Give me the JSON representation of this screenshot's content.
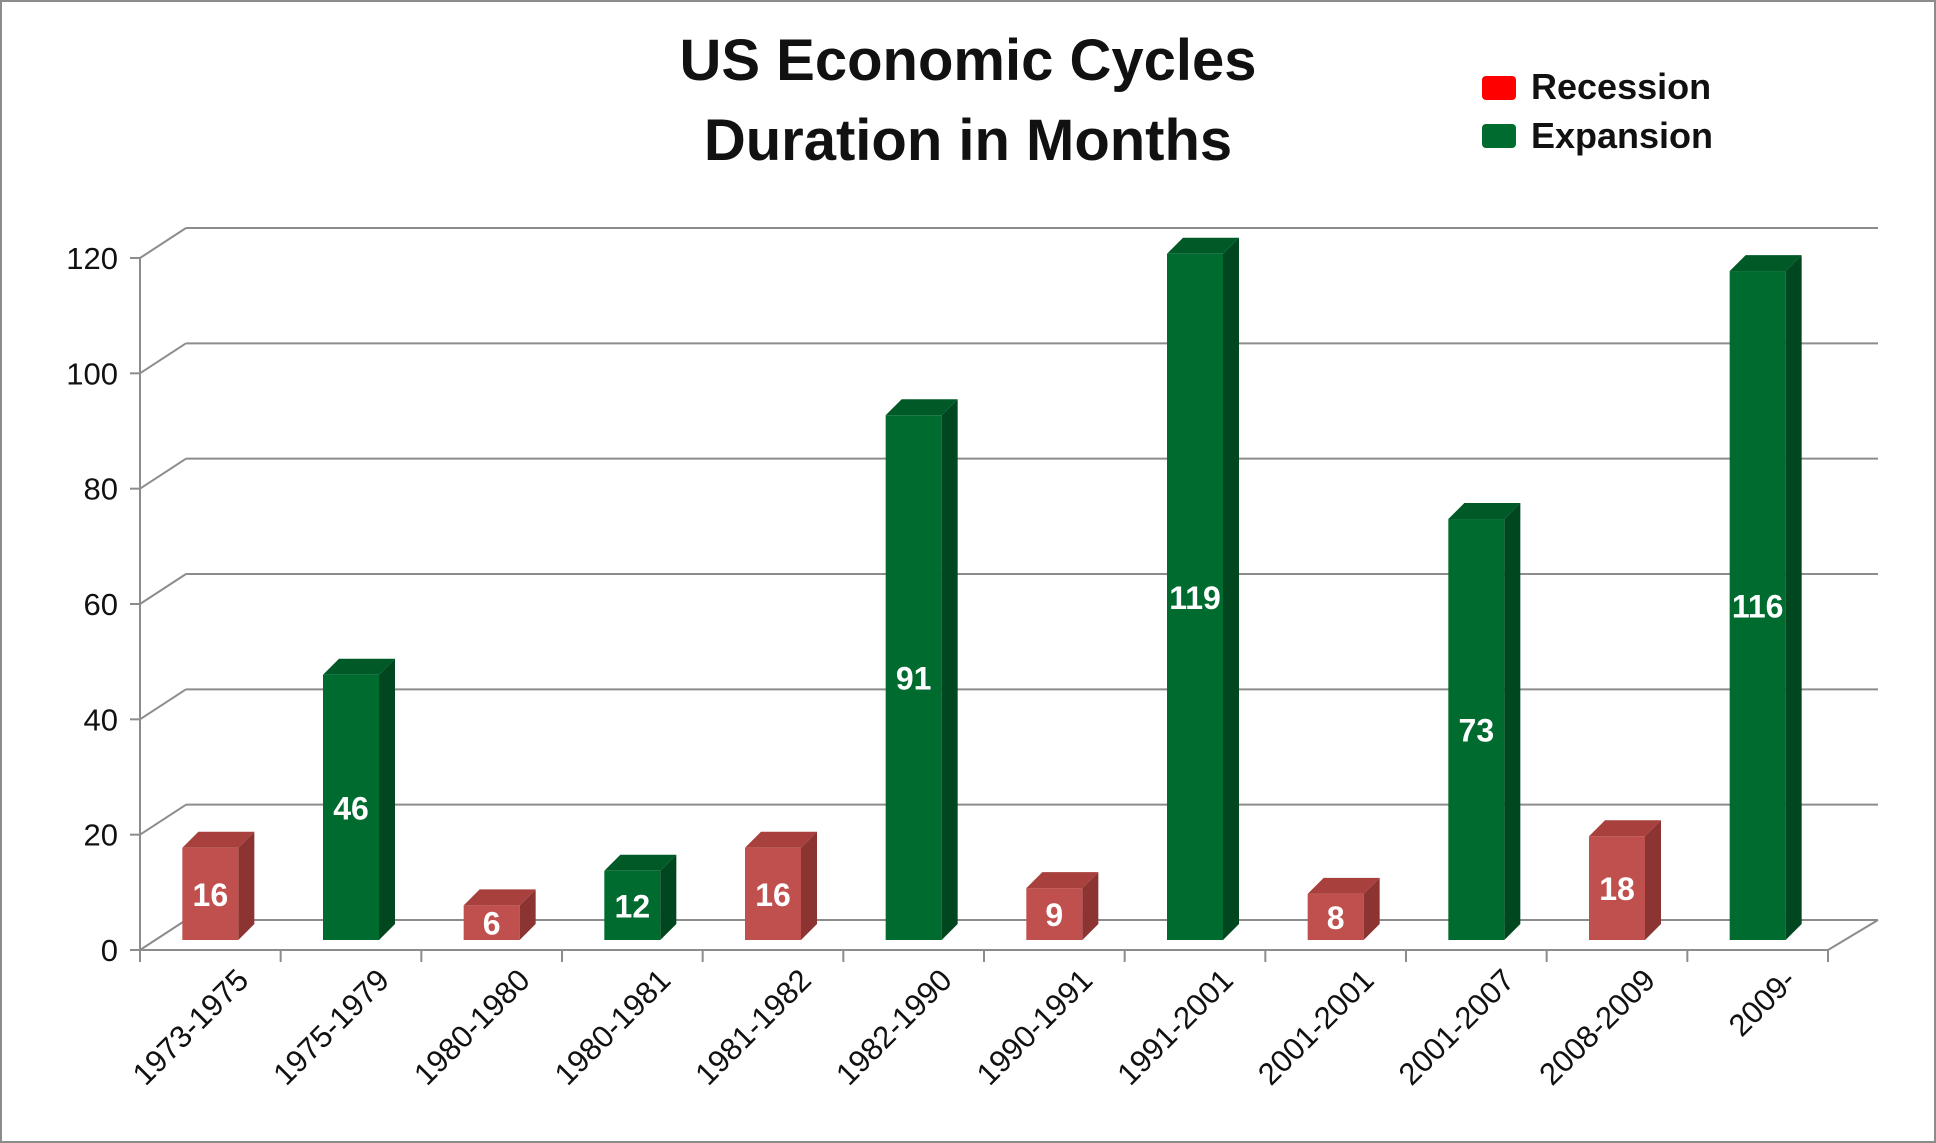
{
  "chart_data": {
    "type": "bar",
    "title": "US Economic Cycles",
    "subtitle": "Duration in Months",
    "xlabel": "",
    "ylabel": "",
    "ylim": [
      0,
      120
    ],
    "yticks": [
      0,
      20,
      40,
      60,
      80,
      100,
      120
    ],
    "grid": true,
    "legend_position": "top-right",
    "categories": [
      "1973-1975",
      "1975-1979",
      "1980-1980",
      "1980-1981",
      "1981-1982",
      "1982-1990",
      "1990-1991",
      "1991-2001",
      "2001-2001",
      "2001-2007",
      "2008-2009",
      "2009-"
    ],
    "values": [
      16,
      46,
      6,
      12,
      16,
      91,
      9,
      119,
      8,
      73,
      18,
      116
    ],
    "phase": [
      "Recession",
      "Expansion",
      "Recession",
      "Expansion",
      "Recession",
      "Expansion",
      "Recession",
      "Expansion",
      "Recession",
      "Expansion",
      "Recession",
      "Expansion"
    ],
    "legend": [
      {
        "name": "Recession",
        "color": "#ff0000"
      },
      {
        "name": "Expansion",
        "color": "#006b2f"
      }
    ],
    "colors": {
      "recession_bar": "#c0504d",
      "expansion_bar": "#006b2f"
    }
  }
}
